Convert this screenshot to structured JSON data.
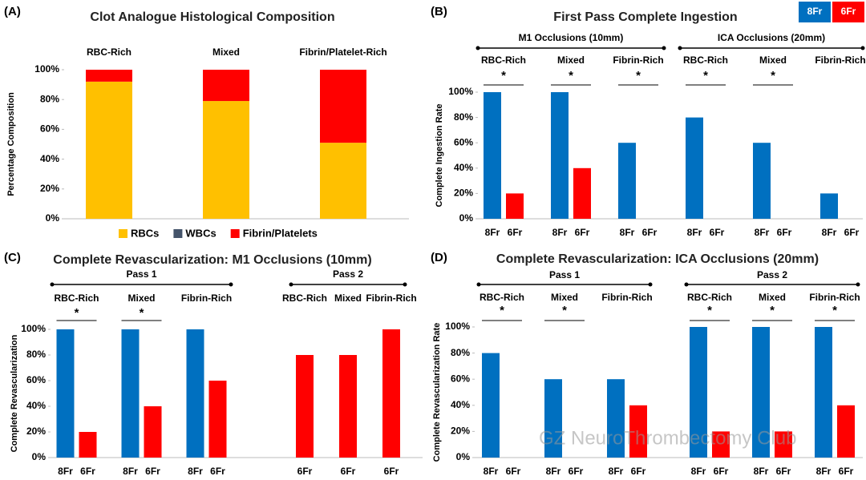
{
  "chart_data": [
    {
      "type": "bar",
      "stacked": true,
      "panel": "(A)",
      "title": "Clot Analogue Histological Composition",
      "ylabel": "Percentage Composition",
      "categories": [
        "RBC-Rich",
        "Mixed",
        "Fibrin/Platelet-Rich"
      ],
      "series": [
        {
          "name": "RBCs",
          "color": "#ffc000",
          "values": [
            92,
            79,
            51
          ]
        },
        {
          "name": "WBCs",
          "color": "#44546a",
          "values": [
            0,
            0,
            0
          ]
        },
        {
          "name": "Fibrin/Platelets",
          "color": "#ff0000",
          "values": [
            8,
            21,
            49
          ]
        }
      ],
      "ylim": [
        0,
        100
      ],
      "yticks": [
        {
          "value": 0,
          "label": "0%"
        },
        {
          "value": 20,
          "label": "20%"
        },
        {
          "value": 40,
          "label": "40%"
        },
        {
          "value": 60,
          "label": "60%"
        },
        {
          "value": 80,
          "label": "80%"
        },
        {
          "value": 100,
          "label": "100%"
        }
      ],
      "legend": "bottom"
    },
    {
      "type": "bar",
      "panel": "(B)",
      "title": "First Pass Complete Ingestion",
      "ylabel": "Complete Ingestion Rate",
      "groups": [
        {
          "name": "M1 Occlusions (10mm)",
          "categories": [
            "RBC-Rich",
            "Mixed",
            "Fibrin-Rich"
          ]
        },
        {
          "name": "ICA Occlusions (20mm)",
          "categories": [
            "RBC-Rich",
            "Mixed",
            "Fibrin-Rich"
          ]
        }
      ],
      "series": [
        {
          "name": "8Fr",
          "color": "#0070c0",
          "values": [
            100,
            100,
            60,
            80,
            60,
            20
          ]
        },
        {
          "name": "6Fr",
          "color": "#ff0000",
          "values": [
            20,
            40,
            0,
            0,
            0,
            0
          ]
        }
      ],
      "annotations": [
        "*",
        "*",
        "*",
        "*",
        "*",
        null
      ],
      "ylim": [
        0,
        100
      ],
      "yticks": [
        {
          "value": 0,
          "label": "0%"
        },
        {
          "value": 20,
          "label": "20%"
        },
        {
          "value": 40,
          "label": "40%"
        },
        {
          "value": 60,
          "label": "60%"
        },
        {
          "value": 80,
          "label": "80%"
        },
        {
          "value": 100,
          "label": "100%"
        }
      ],
      "legend": "top-right"
    },
    {
      "type": "bar",
      "panel": "(C)",
      "title": "Complete Revascularization: M1 Occlusions (10mm)",
      "ylabel": "Complete Revascularization",
      "groups": [
        {
          "name": "Pass 1",
          "categories": [
            "RBC-Rich",
            "Mixed",
            "Fibrin-Rich"
          ]
        },
        {
          "name": "Pass 2",
          "categories": [
            "RBC-Rich",
            "Mixed",
            "Fibrin-Rich"
          ]
        }
      ],
      "series": [
        {
          "name": "8Fr",
          "color": "#0070c0",
          "values": [
            100,
            100,
            100,
            null,
            null,
            null
          ]
        },
        {
          "name": "6Fr",
          "color": "#ff0000",
          "values": [
            20,
            40,
            60,
            80,
            80,
            100
          ]
        }
      ],
      "annotations": [
        "*",
        "*",
        null,
        null,
        null,
        null
      ],
      "ylim": [
        0,
        100
      ],
      "yticks": [
        {
          "value": 0,
          "label": "0%"
        },
        {
          "value": 20,
          "label": "20%"
        },
        {
          "value": 40,
          "label": "40%"
        },
        {
          "value": 60,
          "label": "60%"
        },
        {
          "value": 80,
          "label": "80%"
        },
        {
          "value": 100,
          "label": "100%"
        }
      ]
    },
    {
      "type": "bar",
      "panel": "(D)",
      "title": "Complete Revascularization: ICA Occlusions  (20mm)",
      "ylabel": "Complete Revascularization Rate",
      "groups": [
        {
          "name": "Pass 1",
          "categories": [
            "RBC-Rich",
            "Mixed",
            "Fibrin-Rich"
          ]
        },
        {
          "name": "Pass 2",
          "categories": [
            "RBC-Rich",
            "Mixed",
            "Fibrin-Rich"
          ]
        }
      ],
      "series": [
        {
          "name": "8Fr",
          "color": "#0070c0",
          "values": [
            80,
            60,
            60,
            100,
            100,
            100
          ]
        },
        {
          "name": "6Fr",
          "color": "#ff0000",
          "values": [
            0,
            0,
            40,
            20,
            20,
            40
          ]
        }
      ],
      "annotations": [
        "*",
        "*",
        null,
        "*",
        "*",
        "*"
      ],
      "ylim": [
        0,
        100
      ],
      "yticks": [
        {
          "value": 0,
          "label": "0%"
        },
        {
          "value": 20,
          "label": "20%"
        },
        {
          "value": 40,
          "label": "40%"
        },
        {
          "value": 60,
          "label": "60%"
        },
        {
          "value": 80,
          "label": "80%"
        },
        {
          "value": 100,
          "label": "100%"
        }
      ]
    }
  ],
  "watermark": "GZ NeuroThrombectomy Club"
}
